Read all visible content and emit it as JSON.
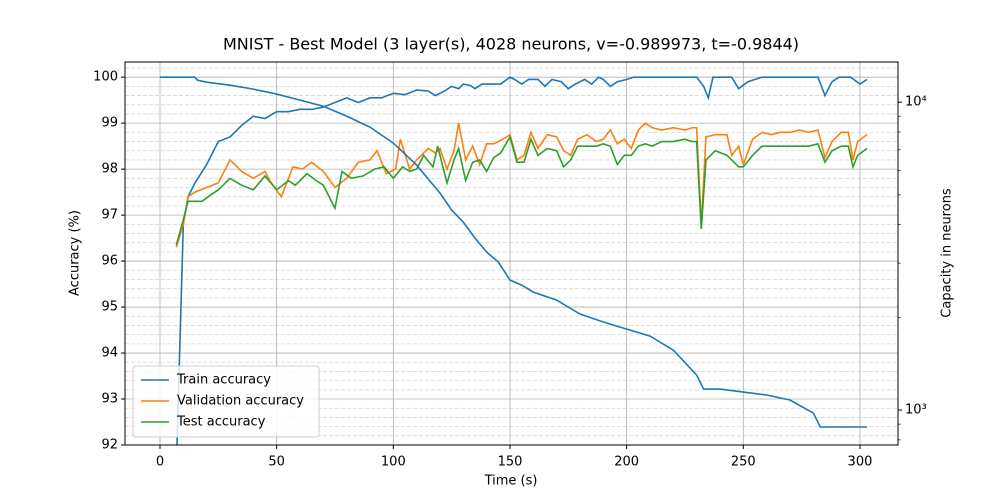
{
  "chart_data": {
    "type": "line",
    "title": "MNIST - Best Model (3 layer(s), 4028 neurons, v=-0.989973, t=-0.9844)",
    "x_label": "Time (s)",
    "y_label": "Accuracy (%)",
    "y2_label": "Capacity in neurons",
    "xlim": [
      -15,
      316.3
    ],
    "xticks": [
      0,
      50,
      100,
      150,
      200,
      250,
      300
    ],
    "ylim": [
      92,
      100.33
    ],
    "yticks": [
      92,
      93,
      94,
      95,
      96,
      97,
      98,
      99,
      100
    ],
    "y2lim": [
      770,
      13500
    ],
    "y2ticks": [
      {
        "value": 1000,
        "label": "10³"
      },
      {
        "value": 10000,
        "label": "10⁴"
      }
    ],
    "y2_log": true,
    "grid": true,
    "minor_grid": true,
    "legend": "lower left",
    "series": [
      {
        "name": "Train accuracy",
        "color": "#1f77b4",
        "x": [
          7,
          10,
          12,
          15,
          20,
          25,
          30,
          35,
          40,
          45,
          50,
          55,
          60,
          65,
          70,
          75,
          80,
          85,
          90,
          95,
          100,
          105,
          110,
          115,
          118,
          122,
          125,
          128,
          130,
          133,
          135,
          138,
          142,
          146,
          150,
          152,
          155,
          158,
          162,
          165,
          168,
          172,
          175,
          178,
          182,
          185,
          188,
          190,
          193,
          196,
          200,
          203,
          210,
          230,
          233,
          235,
          237,
          245,
          248,
          252,
          258,
          282,
          285,
          288,
          291,
          296,
          300,
          303
        ],
        "values": [
          91.5,
          96.8,
          97.4,
          97.7,
          98.1,
          98.6,
          98.7,
          98.95,
          99.15,
          99.1,
          99.25,
          99.25,
          99.3,
          99.3,
          99.35,
          99.45,
          99.55,
          99.45,
          99.55,
          99.55,
          99.65,
          99.62,
          99.72,
          99.7,
          99.6,
          99.7,
          99.8,
          99.75,
          99.85,
          99.82,
          99.75,
          99.85,
          99.85,
          99.85,
          100,
          99.95,
          99.85,
          99.95,
          99.95,
          99.8,
          99.95,
          99.9,
          99.75,
          99.85,
          99.95,
          99.85,
          100,
          99.95,
          99.8,
          99.9,
          99.95,
          100,
          100,
          100,
          99.8,
          99.55,
          100,
          100,
          99.75,
          99.9,
          100,
          100,
          99.6,
          99.9,
          100,
          100,
          99.85,
          99.95
        ]
      },
      {
        "name": "Validation accuracy",
        "color": "#ff7f0e",
        "x": [
          7,
          10,
          12,
          15,
          20,
          25,
          30,
          35,
          40,
          45,
          47,
          52,
          57,
          61,
          65,
          70,
          75,
          80,
          85,
          90,
          93,
          97,
          101,
          103,
          107,
          110,
          115,
          118,
          120,
          123,
          126,
          128,
          131,
          134,
          137,
          140,
          143,
          147,
          150,
          153,
          156,
          159,
          162,
          166,
          170,
          173,
          176,
          179,
          183,
          187,
          190,
          193,
          196,
          199,
          202,
          205,
          208,
          211,
          215,
          220,
          225,
          228,
          230,
          232,
          234,
          238,
          243,
          245,
          248,
          250,
          254,
          258,
          262,
          266,
          270,
          274,
          278,
          282,
          285,
          288,
          292,
          295,
          297,
          299,
          303
        ],
        "values": [
          96.3,
          96.8,
          97.4,
          97.5,
          97.6,
          97.7,
          98.2,
          97.95,
          97.8,
          97.95,
          97.75,
          97.4,
          98.05,
          98.0,
          98.15,
          97.95,
          97.6,
          97.8,
          98.15,
          98.2,
          98.4,
          97.9,
          98.0,
          98.65,
          98.0,
          98.2,
          98.45,
          98.35,
          98.45,
          98.0,
          98.4,
          99.0,
          98.2,
          98.5,
          98.1,
          98.55,
          98.55,
          98.65,
          98.75,
          98.2,
          98.3,
          98.8,
          98.45,
          98.75,
          98.7,
          98.4,
          98.3,
          98.65,
          98.75,
          98.6,
          98.65,
          98.85,
          98.55,
          98.65,
          98.45,
          98.85,
          99.0,
          98.9,
          98.85,
          98.9,
          98.85,
          98.9,
          98.9,
          96.8,
          98.7,
          98.75,
          98.75,
          98.3,
          98.5,
          98.1,
          98.65,
          98.8,
          98.75,
          98.8,
          98.8,
          98.85,
          98.8,
          98.85,
          98.25,
          98.6,
          98.8,
          98.8,
          98.2,
          98.6,
          98.75
        ]
      },
      {
        "name": "Test accuracy",
        "color": "#2ca02c",
        "x": [
          7,
          10,
          12,
          15,
          18,
          22,
          25,
          30,
          35,
          40,
          45,
          50,
          55,
          58,
          63,
          67,
          70,
          75,
          78,
          82,
          87,
          92,
          96,
          100,
          104,
          107,
          110,
          113,
          117,
          119,
          123,
          126,
          128,
          131,
          134,
          137,
          140,
          143,
          146,
          150,
          153,
          156,
          159,
          162,
          166,
          170,
          173,
          176,
          179,
          183,
          187,
          190,
          193,
          196,
          199,
          202,
          205,
          208,
          211,
          215,
          220,
          225,
          228,
          230,
          232,
          234,
          238,
          243,
          245,
          248,
          250,
          254,
          258,
          262,
          266,
          270,
          274,
          278,
          282,
          285,
          288,
          292,
          295,
          297,
          299,
          303
        ],
        "values": [
          96.35,
          96.9,
          97.3,
          97.3,
          97.3,
          97.45,
          97.55,
          97.8,
          97.65,
          97.55,
          97.85,
          97.55,
          97.75,
          97.65,
          97.9,
          97.75,
          97.65,
          97.15,
          97.95,
          97.8,
          97.85,
          98.0,
          98.05,
          97.8,
          98.05,
          97.95,
          98.0,
          98.3,
          98.05,
          98.5,
          97.7,
          98.2,
          98.45,
          97.75,
          98.15,
          98.2,
          97.95,
          98.25,
          98.35,
          98.7,
          98.15,
          98.15,
          98.65,
          98.3,
          98.45,
          98.4,
          98.05,
          98.2,
          98.5,
          98.5,
          98.5,
          98.55,
          98.5,
          98.1,
          98.3,
          98.3,
          98.5,
          98.55,
          98.5,
          98.6,
          98.6,
          98.65,
          98.6,
          98.6,
          96.7,
          98.2,
          98.4,
          98.3,
          98.2,
          98.05,
          98.05,
          98.3,
          98.5,
          98.5,
          98.5,
          98.5,
          98.5,
          98.5,
          98.55,
          98.15,
          98.4,
          98.5,
          98.5,
          98.05,
          98.3,
          98.45
        ]
      },
      {
        "color": "#1f77b4",
        "axis": "y2",
        "x": [
          0,
          15,
          16,
          20,
          30,
          40,
          50,
          60,
          70,
          80,
          90,
          100,
          110,
          120,
          125,
          130,
          135,
          140,
          145,
          150,
          155,
          160,
          170,
          180,
          190,
          200,
          210,
          220,
          230,
          233,
          240,
          250,
          260,
          270,
          280,
          283,
          303
        ],
        "values": [
          12050,
          12050,
          11790,
          11610,
          11350,
          11020,
          10620,
          10150,
          9700,
          9006,
          8294,
          7362,
          6245,
          5064,
          4461,
          4077,
          3617,
          3260,
          3024,
          2643,
          2546,
          2416,
          2276,
          2050,
          1931,
          1832,
          1739,
          1566,
          1299,
          1170,
          1170,
          1144,
          1119,
          1078,
          978,
          881,
          881
        ]
      }
    ]
  }
}
